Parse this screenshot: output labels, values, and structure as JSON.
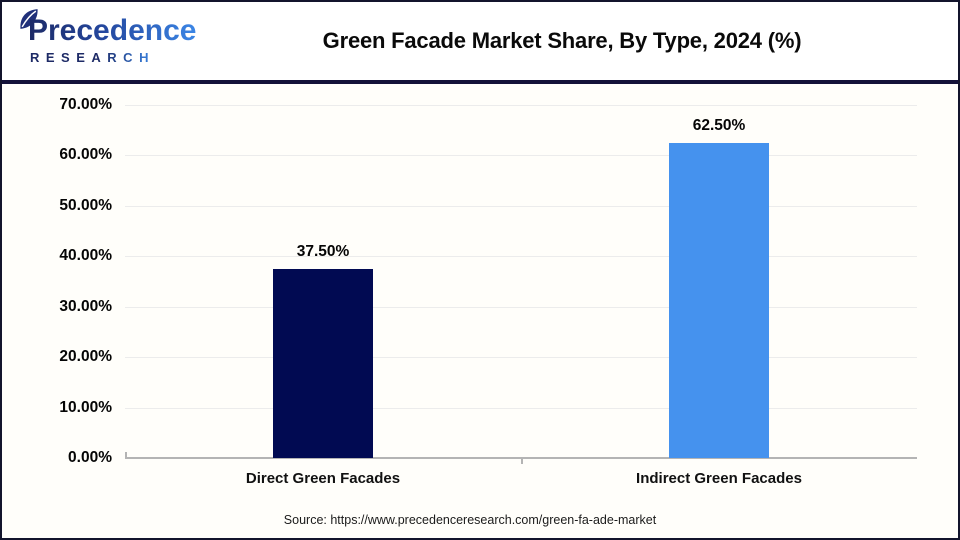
{
  "logo": {
    "brand": "Precedence",
    "sub": "RESEARCH"
  },
  "title": "Green Facade Market Share, By Type, 2024 (%)",
  "source": "Source: https://www.precedenceresearch.com/green-fa-ade-market",
  "colors": {
    "bar_navy": "#010a52",
    "bar_blue": "#4592ee",
    "header_rule": "#141239",
    "frame_border": "#13142c",
    "chart_background": "#fffefa",
    "gridline": "#ececec",
    "axis_line": "#b4b4b4",
    "logo_navy": "#1d2a66",
    "logo_blue": "#3b86e6"
  },
  "chart_data": {
    "type": "bar",
    "title": "Green Facade Market Share, By Type, 2024 (%)",
    "categories": [
      "Direct Green Facades",
      "Indirect Green Facades"
    ],
    "values": [
      37.5,
      62.5
    ],
    "value_labels": [
      "37.50%",
      "62.50%"
    ],
    "bar_colors": [
      "#010a52",
      "#4592ee"
    ],
    "xlabel": "",
    "ylabel": "",
    "ylim": [
      0,
      70
    ],
    "yticks": [
      0,
      10,
      20,
      30,
      40,
      50,
      60,
      70
    ],
    "ytick_labels": [
      "0.00%",
      "10.00%",
      "20.00%",
      "30.00%",
      "40.00%",
      "50.00%",
      "60.00%",
      "70.00%"
    ],
    "grid": true,
    "legend": false
  }
}
